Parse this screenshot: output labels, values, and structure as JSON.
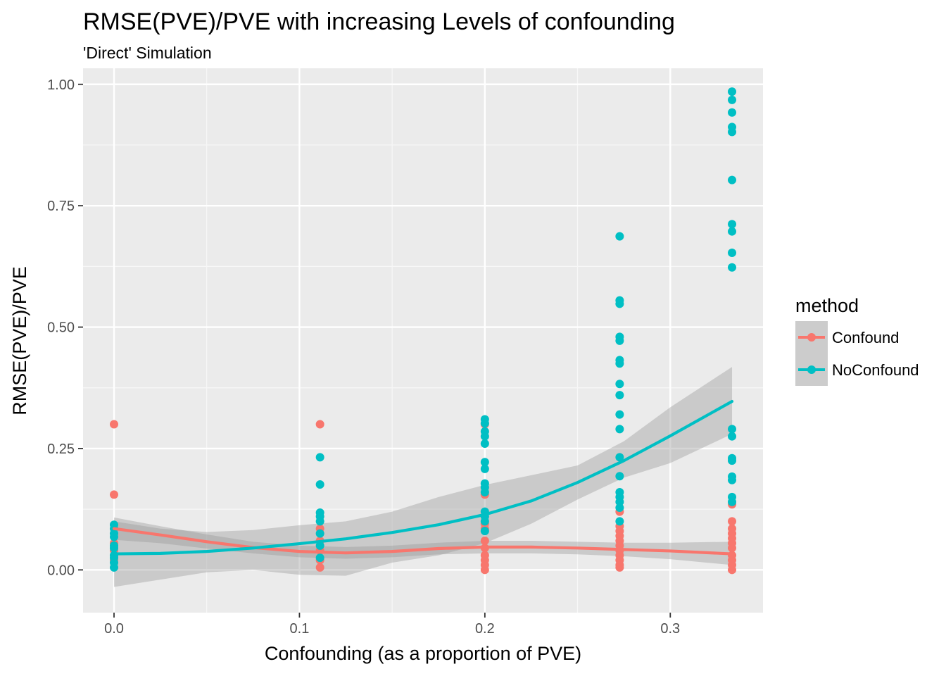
{
  "chart_data": {
    "type": "scatter",
    "title": "RMSE(PVE)/PVE with increasing Levels of confounding",
    "subtitle": "'Direct' Simulation",
    "xlabel": "Confounding (as a proportion of PVE)",
    "ylabel": "RMSE(PVE)/PVE",
    "xlim": [
      -0.0167,
      0.35
    ],
    "ylim": [
      -0.088,
      1.033
    ],
    "x_ticks": [
      0.0,
      0.1,
      0.2,
      0.3
    ],
    "x_tick_labels": [
      "0.0",
      "0.1",
      "0.2",
      "0.3"
    ],
    "y_ticks": [
      0.0,
      0.25,
      0.5,
      0.75,
      1.0
    ],
    "y_tick_labels": [
      "0.00",
      "0.25",
      "0.50",
      "0.75",
      "1.00"
    ],
    "grid": true,
    "background": "#ebebeb",
    "legend": {
      "title": "method",
      "position": "right",
      "entries": [
        "Confound",
        "NoConfound"
      ]
    },
    "series": [
      {
        "name": "Confound",
        "color": "#f8766d",
        "points": [
          [
            0.0,
            0.3
          ],
          [
            0.0,
            0.155
          ],
          [
            0.0,
            0.055
          ],
          [
            0.0,
            0.04
          ],
          [
            0.0,
            0.02
          ],
          [
            0.1111,
            0.3
          ],
          [
            0.1111,
            0.085
          ],
          [
            0.1111,
            0.06
          ],
          [
            0.1111,
            0.04
          ],
          [
            0.1111,
            0.02
          ],
          [
            0.1111,
            0.005
          ],
          [
            0.2,
            0.3
          ],
          [
            0.2,
            0.155
          ],
          [
            0.2,
            0.095
          ],
          [
            0.2,
            0.085
          ],
          [
            0.2,
            0.06
          ],
          [
            0.2,
            0.045
          ],
          [
            0.2,
            0.03
          ],
          [
            0.2,
            0.02
          ],
          [
            0.2,
            0.01
          ],
          [
            0.2,
            0.0
          ],
          [
            0.2727,
            0.12
          ],
          [
            0.2727,
            0.09
          ],
          [
            0.2727,
            0.08
          ],
          [
            0.2727,
            0.07
          ],
          [
            0.2727,
            0.06
          ],
          [
            0.2727,
            0.05
          ],
          [
            0.2727,
            0.04
          ],
          [
            0.2727,
            0.03
          ],
          [
            0.2727,
            0.02
          ],
          [
            0.2727,
            0.01
          ],
          [
            0.2727,
            0.005
          ],
          [
            0.3333,
            0.135
          ],
          [
            0.3333,
            0.1
          ],
          [
            0.3333,
            0.085
          ],
          [
            0.3333,
            0.075
          ],
          [
            0.3333,
            0.065
          ],
          [
            0.3333,
            0.055
          ],
          [
            0.3333,
            0.045
          ],
          [
            0.3333,
            0.03
          ],
          [
            0.3333,
            0.02
          ],
          [
            0.3333,
            0.01
          ],
          [
            0.3333,
            0.0
          ]
        ],
        "smooth": [
          [
            0.0,
            0.085
          ],
          [
            0.025,
            0.072
          ],
          [
            0.05,
            0.058
          ],
          [
            0.075,
            0.046
          ],
          [
            0.1,
            0.038
          ],
          [
            0.125,
            0.035
          ],
          [
            0.15,
            0.038
          ],
          [
            0.175,
            0.044
          ],
          [
            0.2,
            0.047
          ],
          [
            0.225,
            0.047
          ],
          [
            0.25,
            0.045
          ],
          [
            0.275,
            0.042
          ],
          [
            0.3,
            0.039
          ],
          [
            0.3333,
            0.033
          ]
        ],
        "smooth_ci": [
          [
            0.0,
            0.062,
            0.108
          ],
          [
            0.025,
            0.055,
            0.09
          ],
          [
            0.05,
            0.044,
            0.073
          ],
          [
            0.075,
            0.034,
            0.058
          ],
          [
            0.1,
            0.026,
            0.05
          ],
          [
            0.125,
            0.023,
            0.047
          ],
          [
            0.15,
            0.026,
            0.05
          ],
          [
            0.175,
            0.032,
            0.056
          ],
          [
            0.2,
            0.034,
            0.06
          ],
          [
            0.225,
            0.034,
            0.06
          ],
          [
            0.25,
            0.032,
            0.058
          ],
          [
            0.275,
            0.028,
            0.056
          ],
          [
            0.3,
            0.022,
            0.056
          ],
          [
            0.3333,
            0.01,
            0.058
          ]
        ]
      },
      {
        "name": "NoConfound",
        "color": "#00bfc4",
        "points": [
          [
            0.0,
            0.093
          ],
          [
            0.0,
            0.085
          ],
          [
            0.0,
            0.075
          ],
          [
            0.0,
            0.068
          ],
          [
            0.0,
            0.05
          ],
          [
            0.0,
            0.045
          ],
          [
            0.0,
            0.03
          ],
          [
            0.0,
            0.025
          ],
          [
            0.0,
            0.015
          ],
          [
            0.0,
            0.005
          ],
          [
            0.1111,
            0.232
          ],
          [
            0.1111,
            0.176
          ],
          [
            0.1111,
            0.118
          ],
          [
            0.1111,
            0.11
          ],
          [
            0.1111,
            0.1
          ],
          [
            0.1111,
            0.075
          ],
          [
            0.1111,
            0.05
          ],
          [
            0.1111,
            0.025
          ],
          [
            0.2,
            0.31
          ],
          [
            0.2,
            0.302
          ],
          [
            0.2,
            0.285
          ],
          [
            0.2,
            0.275
          ],
          [
            0.2,
            0.26
          ],
          [
            0.2,
            0.222
          ],
          [
            0.2,
            0.208
          ],
          [
            0.2,
            0.178
          ],
          [
            0.2,
            0.17
          ],
          [
            0.2,
            0.16
          ],
          [
            0.2,
            0.12
          ],
          [
            0.2,
            0.11
          ],
          [
            0.2,
            0.1
          ],
          [
            0.2,
            0.08
          ],
          [
            0.2727,
            0.687
          ],
          [
            0.2727,
            0.555
          ],
          [
            0.2727,
            0.548
          ],
          [
            0.2727,
            0.48
          ],
          [
            0.2727,
            0.472
          ],
          [
            0.2727,
            0.432
          ],
          [
            0.2727,
            0.425
          ],
          [
            0.2727,
            0.383
          ],
          [
            0.2727,
            0.36
          ],
          [
            0.2727,
            0.32
          ],
          [
            0.2727,
            0.29
          ],
          [
            0.2727,
            0.232
          ],
          [
            0.2727,
            0.193
          ],
          [
            0.2727,
            0.16
          ],
          [
            0.2727,
            0.15
          ],
          [
            0.2727,
            0.14
          ],
          [
            0.2727,
            0.128
          ],
          [
            0.2727,
            0.1
          ],
          [
            0.3333,
            0.985
          ],
          [
            0.3333,
            0.968
          ],
          [
            0.3333,
            0.942
          ],
          [
            0.3333,
            0.912
          ],
          [
            0.3333,
            0.902
          ],
          [
            0.3333,
            0.803
          ],
          [
            0.3333,
            0.712
          ],
          [
            0.3333,
            0.697
          ],
          [
            0.3333,
            0.653
          ],
          [
            0.3333,
            0.623
          ],
          [
            0.3333,
            0.29
          ],
          [
            0.3333,
            0.275
          ],
          [
            0.3333,
            0.23
          ],
          [
            0.3333,
            0.225
          ],
          [
            0.3333,
            0.192
          ],
          [
            0.3333,
            0.185
          ],
          [
            0.3333,
            0.15
          ],
          [
            0.3333,
            0.14
          ]
        ],
        "smooth": [
          [
            0.0,
            0.033
          ],
          [
            0.025,
            0.034
          ],
          [
            0.05,
            0.038
          ],
          [
            0.075,
            0.045
          ],
          [
            0.1,
            0.054
          ],
          [
            0.125,
            0.064
          ],
          [
            0.15,
            0.077
          ],
          [
            0.175,
            0.093
          ],
          [
            0.2,
            0.114
          ],
          [
            0.225,
            0.142
          ],
          [
            0.25,
            0.18
          ],
          [
            0.275,
            0.225
          ],
          [
            0.3,
            0.276
          ],
          [
            0.3333,
            0.347
          ]
        ],
        "smooth_ci": [
          [
            0.0,
            -0.035,
            0.1
          ],
          [
            0.025,
            -0.02,
            0.085
          ],
          [
            0.05,
            -0.005,
            0.078
          ],
          [
            0.075,
            0.0,
            0.082
          ],
          [
            0.1,
            -0.01,
            0.092
          ],
          [
            0.125,
            -0.012,
            0.1
          ],
          [
            0.15,
            0.015,
            0.12
          ],
          [
            0.175,
            0.03,
            0.15
          ],
          [
            0.2,
            0.055,
            0.175
          ],
          [
            0.225,
            0.095,
            0.195
          ],
          [
            0.25,
            0.145,
            0.215
          ],
          [
            0.275,
            0.19,
            0.265
          ],
          [
            0.3,
            0.22,
            0.335
          ],
          [
            0.3333,
            0.28,
            0.418
          ]
        ]
      }
    ]
  }
}
